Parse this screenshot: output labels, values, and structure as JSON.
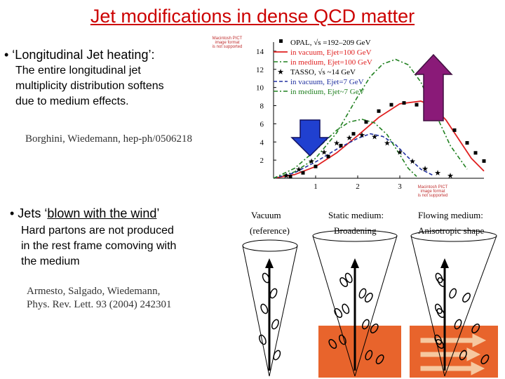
{
  "title": "Jet modifications in dense QCD matter",
  "section1": {
    "bullet_prefix": "• ‘Longitudinal Jet heating’:",
    "body_lines": [
      "The entire longitudinal jet",
      "multiplicity distribution softens",
      "due to medium effects."
    ],
    "citation": "Borghini, Wiedemann, hep-ph/0506218"
  },
  "section2": {
    "bullet_prefix": "• Jets ‘",
    "bullet_underlined": "blown with the wind",
    "bullet_suffix": "’",
    "body_lines": [
      "Hard partons are not produced",
      "in the rest frame comoving with",
      "the medium"
    ],
    "citation_lines": [
      "Armesto, Salgado, Wiedemann,",
      "Phys. Rev. Lett. 93 (2004) 242301"
    ]
  },
  "pict_placeholder": [
    "Macintosh PICT",
    "image format",
    "is not supported"
  ],
  "colors": {
    "title": "#cc0000",
    "arrow_down": "#2040d0",
    "arrow_up": "#8a1a78",
    "medium": "#e8642c"
  },
  "chart_data": {
    "type": "line",
    "title": "",
    "xlabel": "",
    "ylabel": "",
    "xlim": [
      0,
      5
    ],
    "ylim": [
      0,
      15
    ],
    "x_ticks": [
      "1",
      "2",
      "3"
    ],
    "y_ticks": [
      "2",
      "4",
      "6",
      "8",
      "10",
      "12",
      "14"
    ],
    "legend": [
      "OPAL, √s =192–209 GeV",
      "in vacuum, Ejet=100 GeV",
      "in medium, Ejet=100 GeV",
      "TASSO, √s ~14 GeV",
      "in vacuum, Ejet=7 GeV",
      "in medium, Ejet~7 GeV"
    ],
    "series": [
      {
        "name": "in vacuum, Ejet=100 GeV",
        "style": "red-solid",
        "x": [
          0,
          0.5,
          1,
          1.5,
          2,
          2.5,
          3,
          3.5,
          3.8,
          4.1,
          4.4,
          4.7,
          5
        ],
        "y": [
          0,
          0.4,
          1.3,
          2.8,
          4.7,
          6.7,
          8.2,
          8.5,
          7.9,
          6.4,
          4.3,
          2.2,
          0.8
        ]
      },
      {
        "name": "in medium, Ejet=100 GeV",
        "style": "green-dashdot",
        "x": [
          0,
          0.5,
          1,
          1.5,
          2,
          2.3,
          2.6,
          2.9,
          3.2,
          3.5,
          3.8,
          4.2,
          4.6
        ],
        "y": [
          0,
          0.7,
          2.2,
          5,
          9,
          11.2,
          12.6,
          13.1,
          12.5,
          10.6,
          7.6,
          3.6,
          1
        ]
      },
      {
        "name": "in vacuum, Ejet=7 GeV",
        "style": "blue-dashed",
        "x": [
          0,
          0.5,
          1,
          1.5,
          2,
          2.3,
          2.6,
          2.9,
          3.2,
          3.5,
          3.8
        ],
        "y": [
          0,
          0.6,
          1.8,
          3.2,
          4.4,
          4.9,
          4.6,
          3.7,
          2.3,
          1,
          0.3
        ]
      },
      {
        "name": "in medium, Ejet~7 GeV",
        "style": "green-dashdot",
        "x": [
          0,
          0.5,
          1,
          1.5,
          1.8,
          2.1,
          2.4,
          2.7,
          3,
          3.2,
          3.4
        ],
        "y": [
          0,
          1.1,
          3.1,
          5.3,
          6.2,
          6.5,
          6.1,
          4.8,
          2.6,
          1.1,
          0.2
        ]
      },
      {
        "name": "OPAL, √s =192–209 GeV",
        "style": "square-markers",
        "x": [
          0.4,
          0.7,
          1,
          1.3,
          1.6,
          1.9,
          2.2,
          2.5,
          2.8,
          3.1,
          3.4,
          3.7,
          4,
          4.3,
          4.6,
          4.8,
          5
        ],
        "y": [
          0.2,
          0.6,
          1.3,
          2.4,
          3.6,
          4.9,
          6.2,
          7.4,
          8.1,
          8.3,
          8.1,
          7.5,
          6.6,
          5.3,
          3.9,
          2.8,
          1.9
        ]
      },
      {
        "name": "TASSO, √s ~14 GeV",
        "style": "star-markers",
        "x": [
          0.3,
          0.6,
          0.9,
          1.2,
          1.5,
          1.8,
          2.1,
          2.4,
          2.7,
          3,
          3.3,
          3.6,
          3.9,
          4.2
        ],
        "y": [
          0.3,
          1,
          1.9,
          2.9,
          3.9,
          4.5,
          4.8,
          4.6,
          3.9,
          2.9,
          1.9,
          1.1,
          0.6,
          0.3
        ]
      }
    ]
  },
  "diagram": {
    "headers": [
      "Vacuum",
      "Static medium:",
      "Flowing medium:"
    ],
    "subheaders": [
      "(reference)",
      "Broadening",
      "Anisotropic shape"
    ]
  }
}
